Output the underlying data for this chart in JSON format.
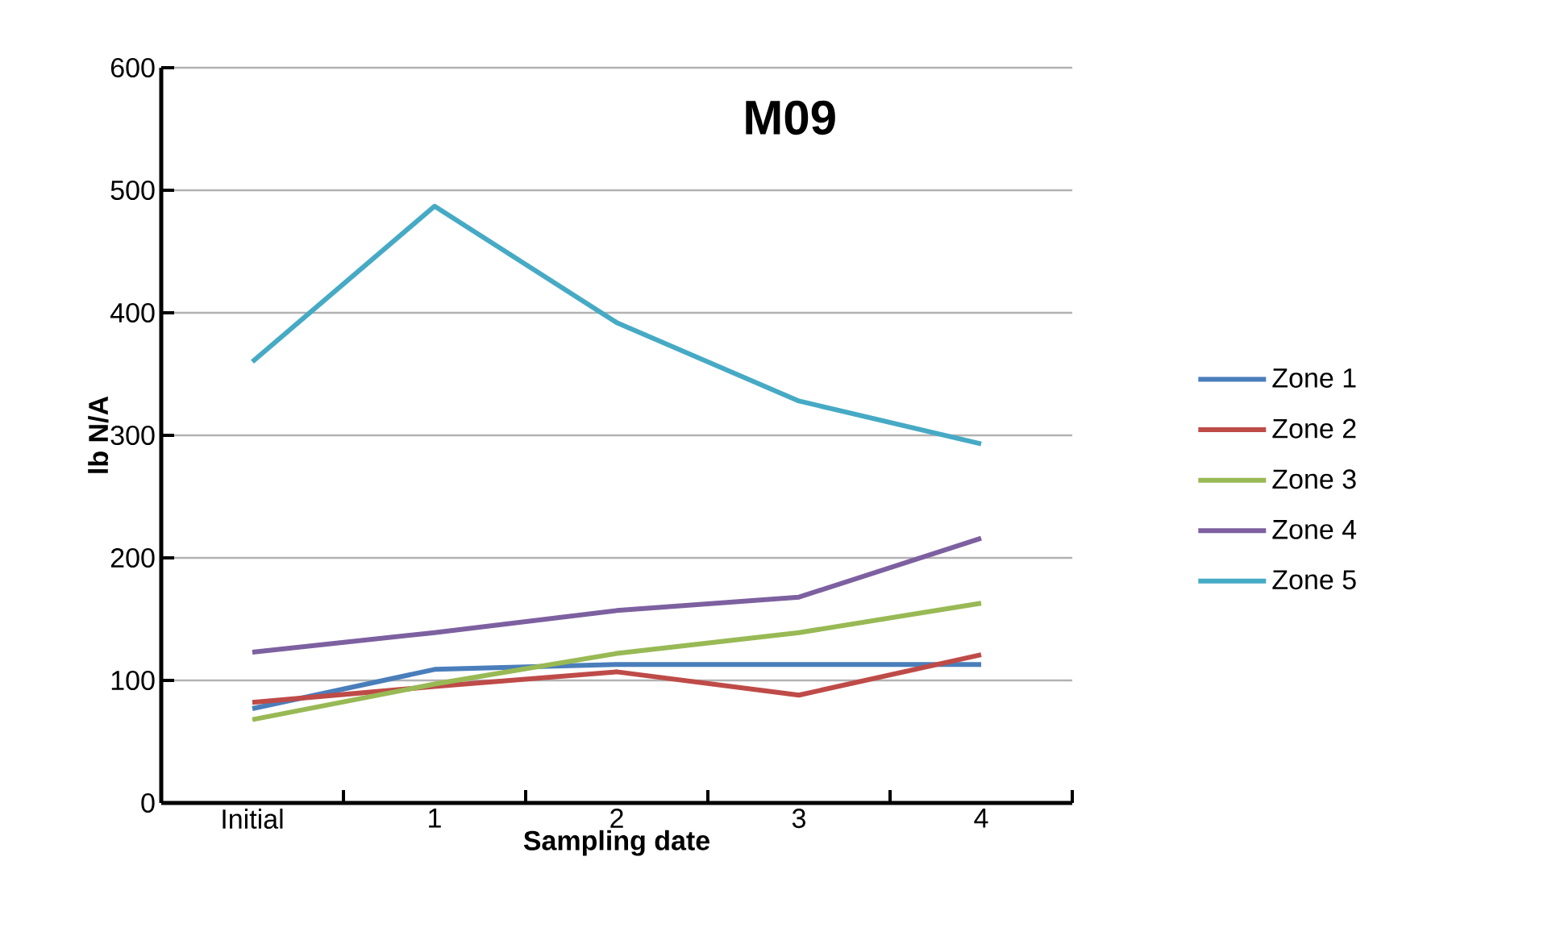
{
  "chart_data": {
    "type": "line",
    "title": "M09",
    "xlabel": "Sampling date",
    "ylabel": "lb N/A",
    "categories": [
      "Initial",
      "1",
      "2",
      "3",
      "4"
    ],
    "series": [
      {
        "name": "Zone 1",
        "color": "#4a7ebb",
        "values": [
          77,
          109,
          113,
          113,
          113
        ]
      },
      {
        "name": "Zone 2",
        "color": "#be4b48",
        "values": [
          82,
          95,
          107,
          88,
          121
        ]
      },
      {
        "name": "Zone 3",
        "color": "#98b954",
        "values": [
          68,
          97,
          122,
          139,
          163
        ]
      },
      {
        "name": "Zone 4",
        "color": "#7d60a0",
        "values": [
          123,
          139,
          157,
          168,
          216
        ]
      },
      {
        "name": "Zone 5",
        "color": "#46aac5",
        "values": [
          360,
          487,
          392,
          328,
          293
        ]
      }
    ],
    "ylim": [
      0,
      600
    ],
    "yticks": [
      0,
      100,
      200,
      300,
      400,
      500,
      600
    ],
    "grid": "y",
    "legend": "right",
    "marker": "none",
    "line_style": "solid"
  }
}
